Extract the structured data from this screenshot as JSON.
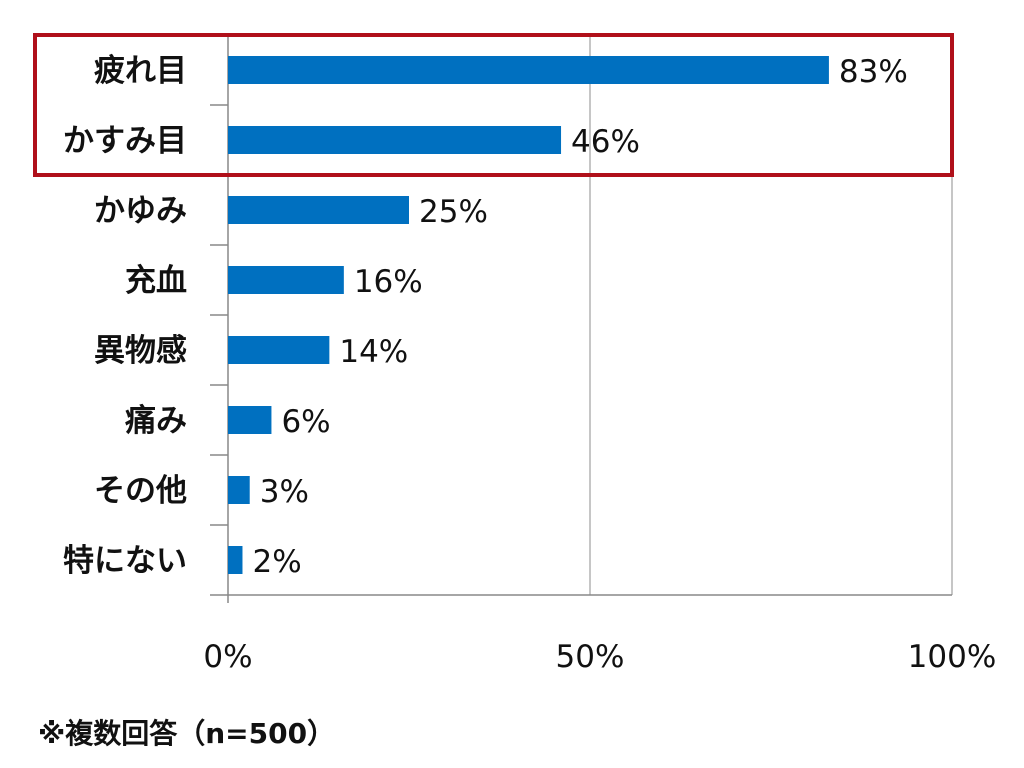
{
  "chart_data": {
    "type": "bar",
    "orientation": "horizontal",
    "categories": [
      "疲れ目",
      "かすみ目",
      "かゆみ",
      "充血",
      "異物感",
      "痛み",
      "その他",
      "特にない"
    ],
    "values": [
      83,
      46,
      25,
      16,
      14,
      6,
      3,
      2
    ],
    "value_labels": [
      "83%",
      "46%",
      "25%",
      "16%",
      "14%",
      "6%",
      "3%",
      "2%"
    ],
    "xlim": [
      0,
      100
    ],
    "x_ticks": [
      "0%",
      "50%",
      "100%"
    ],
    "grid": "vertical",
    "bar_color": "#0070C0",
    "highlight": {
      "categories": [
        "疲れ目",
        "かすみ目"
      ],
      "color": "#B0101A"
    },
    "note": "※複数回答（n=500）"
  }
}
